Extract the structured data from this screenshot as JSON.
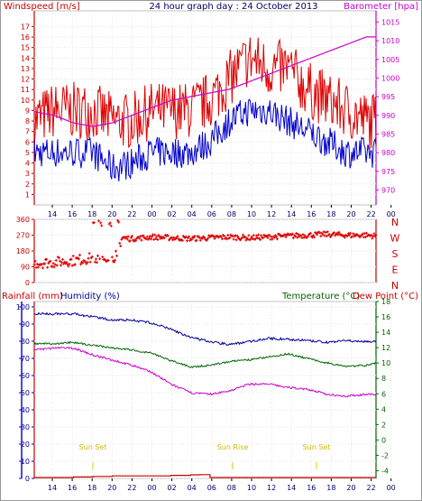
{
  "header": {
    "left_label": "Windspeed [m/s]",
    "title": "24 hour graph day : 24 October 2013",
    "right_label": "Barometer [hpa]"
  },
  "wind_panel": {
    "left_label": "",
    "direction_labels": [
      "N",
      "W",
      "S",
      "E",
      "N"
    ]
  },
  "bottom_header": {
    "rain_label": "Rainfall (mm)",
    "humidity_label": "Humidity (%)",
    "temp_label": "Temperature (°C)",
    "dew_label": "Dew Point (°C)"
  },
  "annotations": {
    "sunset1": "Sun Set",
    "sunrise": "Sun Rise",
    "sunset2": "Sun Set"
  },
  "colors": {
    "windspeed": "#dd0000",
    "windspeed_avg": "#0000cc",
    "barometer": "#cc00cc",
    "direction": "#dd0000",
    "humidity": "#cc00cc",
    "temperature": "#006600",
    "dewpoint": "#000099",
    "rain": "#cc0000",
    "sun": "#ddcc00"
  },
  "chart_data": [
    {
      "type": "line",
      "title": "24 hour graph day : 24 October 2013",
      "xlabel": "",
      "x_ticks": [
        "14",
        "16",
        "18",
        "20",
        "22",
        "00",
        "02",
        "04",
        "06",
        "08",
        "10",
        "12",
        "14",
        "16",
        "18",
        "20",
        "22",
        "00"
      ],
      "y_left_ticks": [
        "1",
        "2",
        "3",
        "4",
        "5",
        "6",
        "7",
        "8",
        "9",
        "10",
        "11",
        "12",
        "13",
        "14",
        "15",
        "16",
        "17"
      ],
      "y_right_ticks": [
        "970",
        "975",
        "980",
        "985",
        "990",
        "995",
        "1000",
        "1005",
        "1010",
        "1015"
      ],
      "ylim_left": [
        0,
        18.5
      ],
      "ylim_right": [
        966,
        1018
      ],
      "xlim_hours": [
        0,
        35
      ],
      "series": [
        {
          "name": "Windspeed [m/s]",
          "axis": "left",
          "style": "gust",
          "x": [
            0,
            2,
            4,
            6,
            8,
            10,
            12,
            14,
            16,
            18,
            20,
            22,
            24,
            26,
            28,
            30,
            32,
            34,
            35
          ],
          "values": [
            8,
            9,
            9,
            9,
            8,
            8,
            9,
            9,
            9,
            10,
            12,
            14,
            13,
            13,
            11,
            10,
            9,
            8,
            8
          ]
        },
        {
          "name": "",
          "axis": "left",
          "style": "avg",
          "x": [
            0,
            2,
            4,
            6,
            8,
            10,
            12,
            14,
            16,
            18,
            20,
            22,
            24,
            26,
            28,
            30,
            32,
            34,
            35
          ],
          "values": [
            5,
            5,
            5,
            5,
            3.5,
            4,
            5,
            5,
            5,
            6,
            8,
            9,
            9,
            8,
            7,
            6,
            5,
            5,
            5
          ]
        },
        {
          "name": "Barometer [hpa]",
          "axis": "right",
          "style": "smooth",
          "x": [
            0,
            2,
            4,
            6,
            8,
            10,
            12,
            14,
            16,
            18,
            20,
            22,
            24,
            26,
            28,
            30,
            32,
            34,
            35
          ],
          "values": [
            991,
            990,
            988,
            987,
            988,
            990,
            992,
            994,
            995,
            996,
            997,
            999,
            1001,
            1003,
            1005,
            1007,
            1009,
            1011,
            1011
          ]
        }
      ]
    },
    {
      "type": "scatter",
      "title": "",
      "y_ticks": [
        "360",
        "270",
        "180",
        "90",
        "0"
      ],
      "ylim": [
        0,
        360
      ],
      "xlim_hours": [
        0,
        35
      ],
      "series": [
        {
          "name": "",
          "x": [
            0,
            2,
            4,
            6,
            8,
            9,
            10,
            12,
            14,
            16,
            18,
            20,
            22,
            24,
            26,
            28,
            30,
            32,
            34,
            35
          ],
          "values": [
            110,
            115,
            125,
            140,
            120,
            255,
            250,
            260,
            255,
            250,
            255,
            260,
            255,
            260,
            265,
            270,
            275,
            270,
            270,
            265
          ]
        }
      ]
    },
    {
      "type": "line",
      "title": "",
      "y_left_ticks": [
        "0",
        "10",
        "20",
        "30",
        "40",
        "50",
        "60",
        "70",
        "80",
        "90",
        "100"
      ],
      "y_right_ticks": [
        "-4",
        "-2",
        "0",
        "2",
        "4",
        "6",
        "8",
        "10",
        "12",
        "14",
        "16",
        "18"
      ],
      "ylim_left": [
        0,
        100
      ],
      "ylim_right": [
        -5,
        18
      ],
      "xlim_hours": [
        0,
        35
      ],
      "series": [
        {
          "name": "Humidity (%)",
          "axis": "left",
          "x": [
            0,
            2,
            4,
            6,
            8,
            10,
            12,
            14,
            16,
            18,
            20,
            22,
            24,
            26,
            28,
            30,
            32,
            34,
            35
          ],
          "values": [
            75,
            76,
            76,
            72,
            69,
            66,
            62,
            55,
            50,
            49,
            51,
            55,
            55,
            53,
            52,
            49,
            48,
            49,
            49
          ]
        },
        {
          "name": "Temperature (°C)",
          "axis": "right",
          "x": [
            0,
            2,
            4,
            6,
            8,
            10,
            12,
            14,
            16,
            18,
            20,
            22,
            24,
            26,
            28,
            30,
            32,
            34,
            35
          ],
          "values": [
            12.5,
            12.5,
            12.7,
            12.3,
            12,
            11.7,
            11.3,
            10.3,
            9.5,
            9.7,
            10.2,
            10.4,
            10.8,
            11.2,
            10.6,
            10,
            9.6,
            9.7,
            10
          ]
        },
        {
          "name": "Dew Point (°C)",
          "axis": "right",
          "x": [
            0,
            2,
            4,
            6,
            8,
            10,
            12,
            14,
            16,
            18,
            20,
            22,
            24,
            26,
            28,
            30,
            32,
            34,
            35
          ],
          "values": [
            16.4,
            16.4,
            16.4,
            16,
            15.6,
            15.6,
            15.2,
            14.4,
            13.3,
            12.8,
            12.4,
            12.8,
            13.2,
            13.1,
            12.9,
            12.7,
            12.9,
            12.8,
            12.8
          ]
        },
        {
          "name": "Rainfall (mm)",
          "axis": "left",
          "x": [
            0,
            2,
            4,
            6,
            8,
            10,
            12,
            14,
            16,
            17,
            18,
            20,
            22,
            24,
            26,
            28,
            30,
            32,
            34,
            35
          ],
          "values": [
            0,
            0,
            0.5,
            1,
            1.5,
            1.5,
            1.5,
            2,
            2.5,
            2.7,
            0,
            0,
            0,
            0,
            0,
            0,
            0,
            0,
            0,
            0
          ]
        }
      ]
    }
  ]
}
